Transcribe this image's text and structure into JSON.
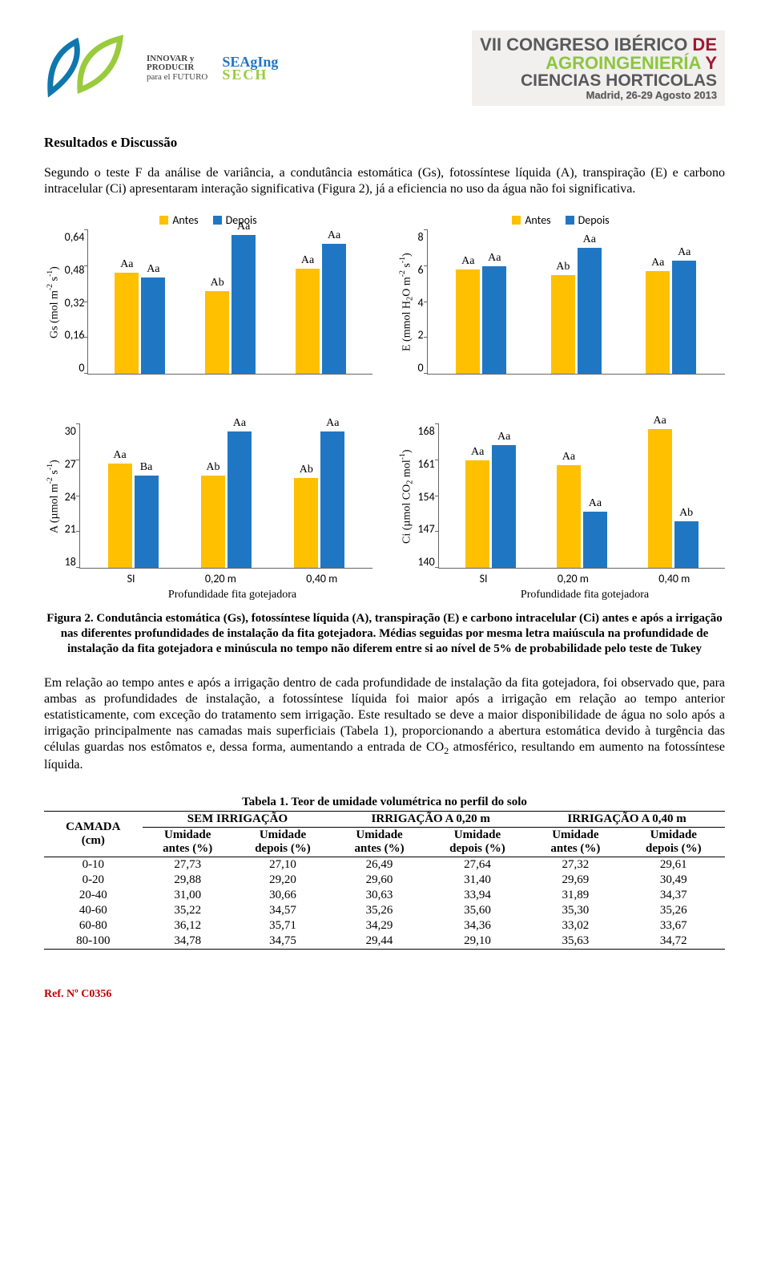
{
  "colors": {
    "antes": "#ffc000",
    "depois": "#1f77c4",
    "axis": "#666666",
    "leaf1": "#0f77ae",
    "leaf2": "#9acb3c",
    "seaging_top": "#1f77c4",
    "seaging_bot": "#9acb3c",
    "congress_green": "#8cc63f",
    "congress_gray": "#58595b",
    "congress_red": "#9e1b32"
  },
  "header": {
    "innovar1": "INNOVAR y",
    "innovar2": "PRODUCIR",
    "innovar3": "para el FUTURO",
    "seaging_top": "SEAgIng",
    "seaging_bot": "SECH",
    "congress_l1a": "VII CONGRESO IBÉRICO",
    "congress_l1b": " DE",
    "congress_l2a": "AGROINGENIERÍA",
    "congress_l2b": " Y",
    "congress_l3": "CIENCIAS HORTICOLAS",
    "congress_l4": "Madrid, 26-29 Agosto 2013"
  },
  "section_title": "Resultados e Discussão",
  "para1": "Segundo o teste F da análise de variância, a condutância estomática (Gs), fotossíntese líquida (A), transpiração (E) e carbono intracelular (Ci) apresentaram interação significativa (Figura 2), já a eficiencia no uso da água não foi significativa.",
  "legend": {
    "antes": "Antes",
    "depois": "Depois"
  },
  "x_categories": [
    "SI",
    "0,20 m",
    "0,40 m"
  ],
  "x_axis_label": "Profundidade fita gotejadora",
  "charts": {
    "gs": {
      "y_label_html": "Gs (mol m<sup>-2</sup> s<sup>-1</sup>)",
      "ymin": 0,
      "ymax": 0.64,
      "yticks": [
        "0,64",
        "0,48",
        "0,32",
        "0,16",
        "0"
      ],
      "bars": [
        {
          "antes": 0.45,
          "la": "Aa",
          "depois": 0.43,
          "ld": "Aa"
        },
        {
          "antes": 0.37,
          "la": "Ab",
          "depois": 0.62,
          "ld": "Aa"
        },
        {
          "antes": 0.47,
          "la": "Aa",
          "depois": 0.58,
          "ld": "Aa"
        }
      ]
    },
    "e": {
      "y_label_html": "E (mmol H<sub>2</sub>O m<sup>-2</sup> s<sup>-1</sup>)",
      "ymin": 0,
      "ymax": 8,
      "yticks": [
        "8",
        "6",
        "4",
        "2",
        "0"
      ],
      "bars": [
        {
          "antes": 5.8,
          "la": "Aa",
          "depois": 6.0,
          "ld": "Aa"
        },
        {
          "antes": 5.5,
          "la": "Ab",
          "depois": 7.0,
          "ld": "Aa"
        },
        {
          "antes": 5.7,
          "la": "Aa",
          "depois": 6.3,
          "ld": "Aa"
        }
      ]
    },
    "a": {
      "y_label_html": "A (µmol m<sup>-2</sup> s<sup>-1</sup>)",
      "ymin": 18,
      "ymax": 30,
      "yticks": [
        "30",
        "27",
        "24",
        "21",
        "18"
      ],
      "bars": [
        {
          "antes": 26.7,
          "la": "Aa",
          "depois": 25.7,
          "ld": "Ba"
        },
        {
          "antes": 25.7,
          "la": "Ab",
          "depois": 29.4,
          "ld": "Aa"
        },
        {
          "antes": 25.5,
          "la": "Ab",
          "depois": 29.4,
          "ld": "Aa"
        }
      ]
    },
    "ci": {
      "y_label_html": "Ci (µmol CO<sub>2</sub> mol<sup>-1</sup>)",
      "ymin": 140,
      "ymax": 168,
      "yticks": [
        "168",
        "161",
        "154",
        "147",
        "140"
      ],
      "bars": [
        {
          "antes": 161,
          "la": "Aa",
          "depois": 164,
          "ld": "Aa"
        },
        {
          "antes": 160,
          "la": "Aa",
          "depois": 151,
          "ld": "Aa"
        },
        {
          "antes": 167,
          "la": "Aa",
          "depois": 149,
          "ld": "Ab"
        }
      ]
    }
  },
  "figure_caption": "Figura 2. Condutância estomática (Gs), fotossíntese líquida (A), transpiração (E) e carbono intracelular (Ci) antes e após a irrigação nas diferentes profundidades de instalação da fita gotejadora. Médias seguidas por mesma letra maiúscula na profundidade de instalação da fita gotejadora e minúscula no tempo não diferem entre si ao nível de 5% de probabilidade pelo teste de Tukey",
  "para2_html": "Em relação ao tempo antes e após a irrigação dentro de cada profundidade de instalação da fita gotejadora, foi observado que, para ambas as profundidades de instalação, a fotossíntese líquida foi maior após a irrigação em relação ao tempo anterior estatisticamente, com exceção do tratamento sem irrigação. Este resultado se deve a maior disponibilidade de água no solo após a irrigação principalmente nas camadas mais superficiais (Tabela 1), proporcionando a abertura estomática devido à turgência das células guardas nos estômatos e, dessa forma, aumentando a entrada de CO<sub>2</sub> atmosférico, resultando em aumento na fotossíntese líquida.",
  "table": {
    "title": "Tabela 1. Teor de umidade volumétrica no perfil do solo",
    "row_header_l1": "CAMADA",
    "row_header_l2": "(cm)",
    "group_headers": [
      "SEM IRRIGAÇÃO",
      "IRRIGAÇÃO A 0,20 m",
      "IRRIGAÇÃO A 0,40 m"
    ],
    "sub_headers": [
      "Umidade antes (%)",
      "Umidade depois (%)",
      "Umidade antes (%)",
      "Umidade depois (%)",
      "Umidade antes (%)",
      "Umidade depois (%)"
    ],
    "rows": [
      [
        "0-10",
        "27,73",
        "27,10",
        "26,49",
        "27,64",
        "27,32",
        "29,61"
      ],
      [
        "0-20",
        "29,88",
        "29,20",
        "29,60",
        "31,40",
        "29,69",
        "30,49"
      ],
      [
        "20-40",
        "31,00",
        "30,66",
        "30,63",
        "33,94",
        "31,89",
        "34,37"
      ],
      [
        "40-60",
        "35,22",
        "34,57",
        "35,26",
        "35,60",
        "35,30",
        "35,26"
      ],
      [
        "60-80",
        "36,12",
        "35,71",
        "34,29",
        "34,36",
        "33,02",
        "33,67"
      ],
      [
        "80-100",
        "34,78",
        "34,75",
        "29,44",
        "29,10",
        "35,63",
        "34,72"
      ]
    ]
  },
  "ref": "Ref. Nº C0356"
}
